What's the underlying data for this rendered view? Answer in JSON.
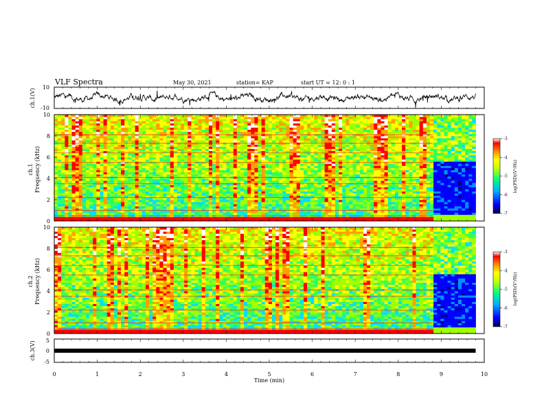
{
  "header": {
    "title": "VLF Spectra",
    "date": "May 30, 2021",
    "station": "station= KAP",
    "start": "start UT = 12: 0 : 1"
  },
  "colors": {
    "trace": "#000000",
    "colormap": [
      "#00007a",
      "#0000ff",
      "#0090ff",
      "#00e0ff",
      "#30ff60",
      "#a0ff00",
      "#ffff00",
      "#ffa000",
      "#ff0000",
      "#ffffff"
    ]
  },
  "chart_data": [
    {
      "type": "line",
      "panel": "ch1-waveform",
      "ylabel": "ch.1(V)",
      "ytick_labels": [
        "10",
        "-10"
      ],
      "ylim": [
        -10,
        10
      ],
      "xlim": [
        0,
        10
      ],
      "data_end_min": 9.8,
      "level_approx": 0
    },
    {
      "type": "heatmap",
      "panel": "ch1-spectrogram",
      "ylabel_channel": "ch.1",
      "ylabel": "Frequency (kHz)",
      "ytick_labels": [
        "0",
        "2",
        "4",
        "6",
        "8",
        "10"
      ],
      "ylim": [
        0,
        10
      ],
      "xlim": [
        0,
        10
      ],
      "data_end_min": 9.8,
      "quiet_interval_min": [
        8.8,
        9.8
      ],
      "colorbar_label": "log(PSD)(V²/Hz)",
      "colorbar_ticks": [
        "-3",
        "-4",
        "-5",
        "-6",
        "-7"
      ],
      "colorbar_range": [
        -7,
        -3
      ]
    },
    {
      "type": "heatmap",
      "panel": "ch2-spectrogram",
      "ylabel_channel": "ch.2",
      "ylabel": "Frequency (kHz)",
      "ytick_labels": [
        "0",
        "2",
        "4",
        "6",
        "8",
        "10"
      ],
      "ylim": [
        0,
        10
      ],
      "xlim": [
        0,
        10
      ],
      "data_end_min": 9.8,
      "quiet_interval_min": [
        8.8,
        9.8
      ],
      "colorbar_label": "log(PSD)(V²/Hz)",
      "colorbar_ticks": [
        "-3",
        "-4",
        "-5",
        "-6",
        "-7"
      ],
      "colorbar_range": [
        -7,
        -3
      ]
    },
    {
      "type": "line",
      "panel": "ch3-waveform",
      "ylabel": "ch.3(V)",
      "ytick_labels": [
        "5",
        "0",
        "-5"
      ],
      "ylim": [
        -5,
        5
      ],
      "xlim": [
        0,
        10
      ],
      "data_end_min": 9.8,
      "level_approx": 0
    }
  ],
  "xaxis": {
    "xlabel": "Time (min)",
    "tick_labels": [
      "0",
      "1",
      "2",
      "3",
      "4",
      "5",
      "6",
      "7",
      "8",
      "9",
      "10"
    ]
  }
}
